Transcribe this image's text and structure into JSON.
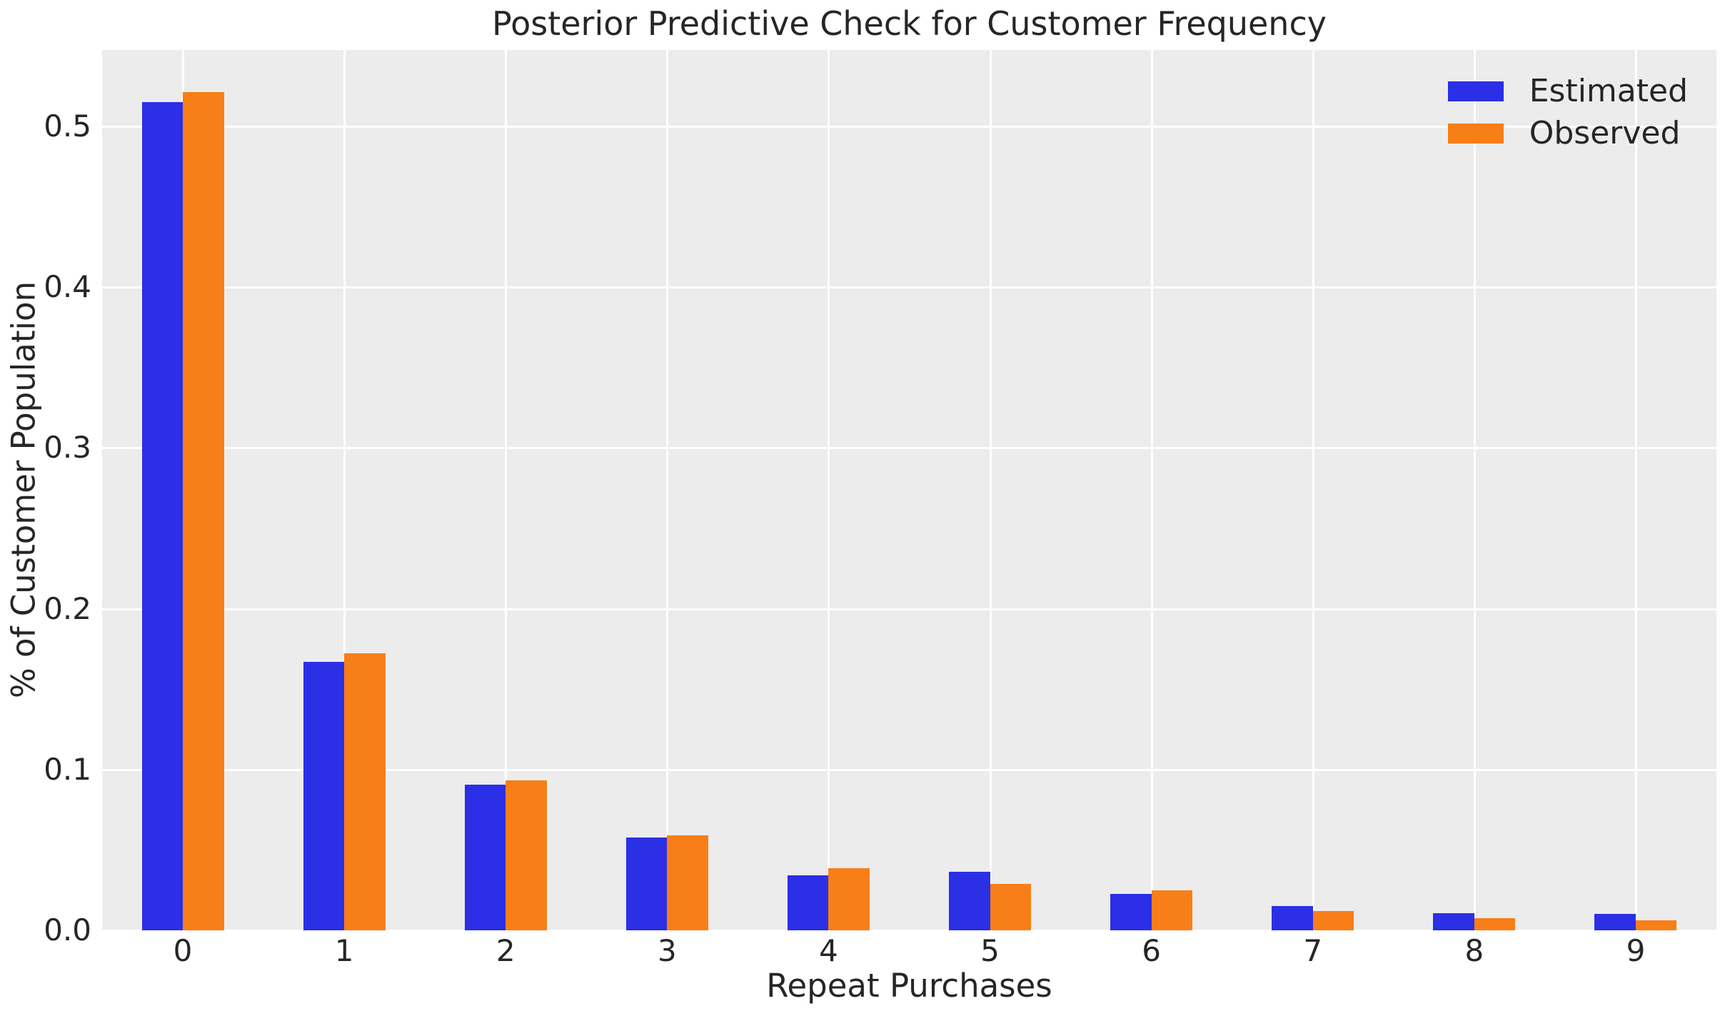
{
  "chart_data": {
    "type": "bar",
    "title": "Posterior Predictive Check for Customer Frequency",
    "xlabel": "Repeat Purchases",
    "ylabel": "% of Customer Population",
    "categories": [
      "0",
      "1",
      "2",
      "3",
      "4",
      "5",
      "6",
      "7",
      "8",
      "9"
    ],
    "series": [
      {
        "name": "Estimated",
        "color": "#2b2fe6",
        "values": [
          0.515,
          0.167,
          0.0905,
          0.0577,
          0.0342,
          0.0365,
          0.0225,
          0.0152,
          0.0105,
          0.0102
        ]
      },
      {
        "name": "Observed",
        "color": "#f87e17",
        "values": [
          0.5212,
          0.1723,
          0.0931,
          0.0591,
          0.0386,
          0.0289,
          0.0247,
          0.012,
          0.0077,
          0.0061
        ]
      }
    ],
    "yticks": [
      0.0,
      0.1,
      0.2,
      0.3,
      0.4,
      0.5
    ],
    "ytick_labels": [
      "0.0",
      "0.1",
      "0.2",
      "0.3",
      "0.4",
      "0.5"
    ],
    "ylim": [
      0,
      0.5475
    ],
    "grid": true,
    "legend_position": "upper right",
    "colors": {
      "plot_background": "#ececec",
      "grid": "#ffffff",
      "text": "#262626",
      "figure_background": "#ffffff"
    }
  }
}
